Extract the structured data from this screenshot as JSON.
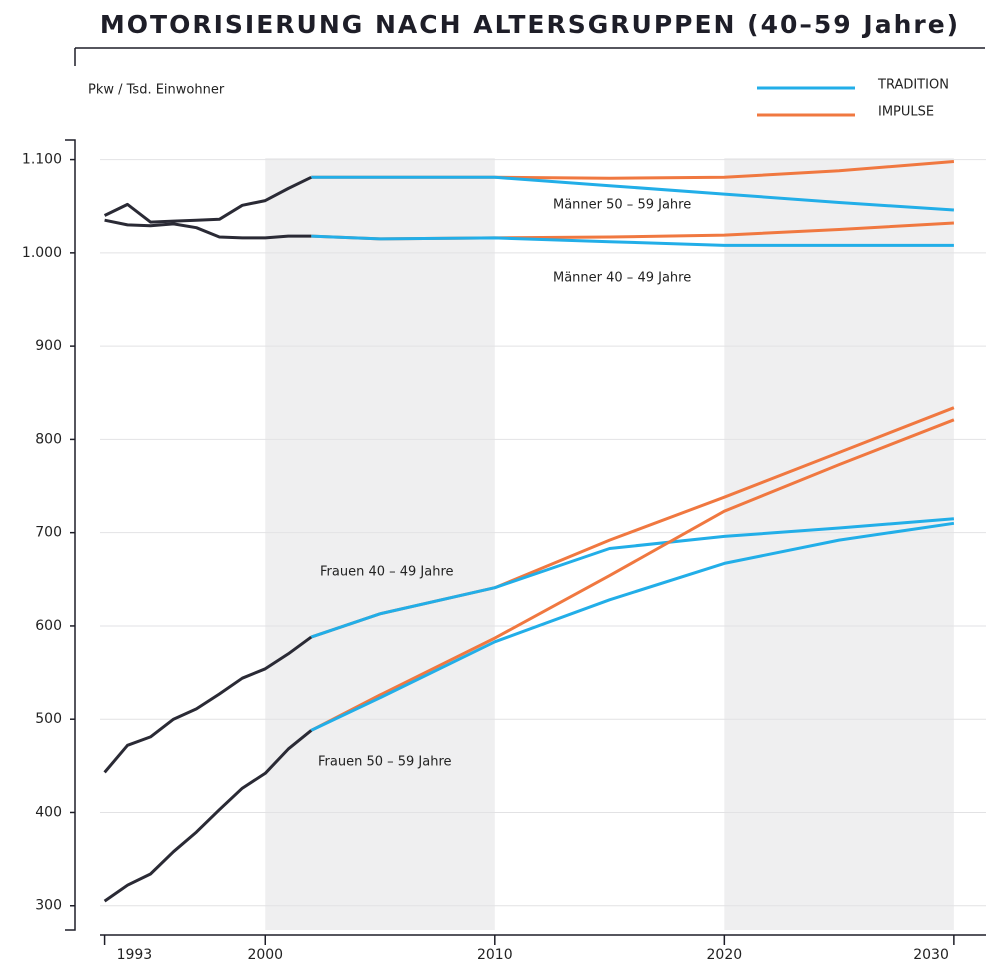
{
  "chart_data": {
    "type": "line",
    "title": "MOTORISIERUNG NACH ALTERSGRUPPEN (40–59 Jahre)",
    "y_label": "Pkw / Tsd. Einwohner",
    "xlim": [
      1992.8,
      2031.4
    ],
    "xticks": [
      1993,
      2000,
      2010,
      2020,
      2030
    ],
    "ylim": [
      274,
      1121
    ],
    "yticks": [
      300,
      400,
      500,
      600,
      700,
      800,
      900,
      {
        "value": 1000,
        "label": "1.000"
      },
      {
        "value": 1100,
        "label": "1.100"
      }
    ],
    "grid": true,
    "shaded_ranges": [
      [
        2000,
        2010
      ],
      [
        2020,
        2030
      ]
    ],
    "history_color": "#2a2a35",
    "scenarios": [
      {
        "key": "tradition",
        "name": "TRADITION",
        "color": "#22aee8"
      },
      {
        "key": "impulse",
        "name": "IMPULSE",
        "color": "#f07840"
      }
    ],
    "groups": [
      {
        "label": "Männer 50 – 59 Jahre",
        "x_history": [
          1993,
          1994,
          1995,
          1996,
          1997,
          1998,
          1999,
          2000,
          2001,
          2002
        ],
        "history": [
          1040,
          1052,
          1033,
          1034,
          1035,
          1036,
          1051,
          1056,
          1069,
          1081
        ],
        "x_projection": [
          2002,
          2005,
          2010,
          2015,
          2020,
          2025,
          2030
        ],
        "tradition": [
          1081,
          1081,
          1081,
          1072,
          1063,
          1054,
          1046
        ],
        "impulse": [
          1081,
          1081,
          1081,
          1080,
          1081,
          1088,
          1098
        ]
      },
      {
        "label": "Männer 40 – 49 Jahre",
        "x_history": [
          1993,
          1994,
          1995,
          1996,
          1997,
          1998,
          1999,
          2000,
          2001,
          2002
        ],
        "history": [
          1035,
          1030,
          1029,
          1031,
          1027,
          1017,
          1016,
          1016,
          1018,
          1018
        ],
        "x_projection": [
          2002,
          2005,
          2010,
          2015,
          2020,
          2025,
          2030
        ],
        "tradition": [
          1018,
          1015,
          1016,
          1012,
          1008,
          1008,
          1008
        ],
        "impulse": [
          1018,
          1015,
          1016,
          1017,
          1019,
          1025,
          1032
        ]
      },
      {
        "label": "Frauen 40 – 49 Jahre",
        "x_history": [
          1993,
          1994,
          1995,
          1996,
          1997,
          1998,
          1999,
          2000,
          2001,
          2002
        ],
        "history": [
          443,
          472,
          481,
          500,
          511,
          527,
          544,
          554,
          570,
          588
        ],
        "x_projection": [
          2002,
          2005,
          2010,
          2015,
          2020,
          2025,
          2030
        ],
        "tradition": [
          588,
          613,
          641,
          683,
          696,
          705,
          715
        ],
        "impulse": [
          588,
          613,
          641,
          692,
          738,
          786,
          834
        ]
      },
      {
        "label": "Frauen 50 – 59 Jahre",
        "x_history": [
          1993,
          1994,
          1995,
          1996,
          1997,
          1998,
          1999,
          2000,
          2001,
          2002
        ],
        "history": [
          305,
          322,
          334,
          358,
          379,
          403,
          426,
          442,
          468,
          488
        ],
        "x_projection": [
          2002,
          2005,
          2010,
          2015,
          2020,
          2025,
          2030
        ],
        "tradition": [
          488,
          523,
          583,
          628,
          667,
          692,
          710
        ],
        "impulse": [
          488,
          526,
          587,
          654,
          723,
          773,
          821
        ]
      }
    ]
  }
}
